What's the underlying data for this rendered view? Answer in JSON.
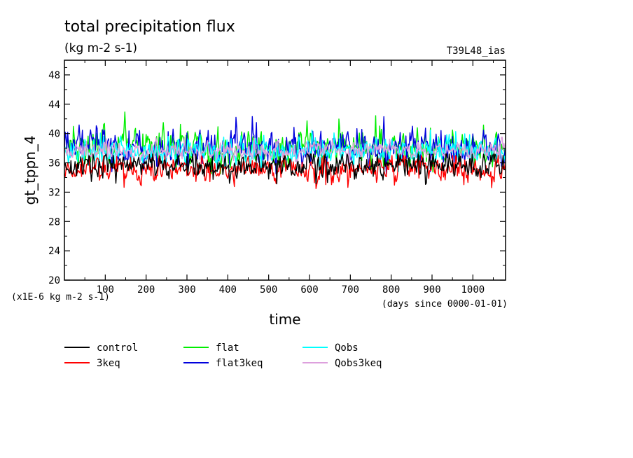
{
  "chart_data": {
    "type": "line",
    "title": "total precipitation flux",
    "subtitle": "(kg m-2 s-1)",
    "experiment_label": "T39L48_ias",
    "xlabel": "time",
    "x_unit_note": "(days since 0000-01-01)",
    "ylabel": "gt_tppn_4",
    "y_unit_note": "(x1E-6 kg m-2 s-1)",
    "xlim": [
      0,
      1080
    ],
    "ylim": [
      20,
      50
    ],
    "x_ticks": [
      100,
      200,
      300,
      400,
      500,
      600,
      700,
      800,
      900,
      1000
    ],
    "x_tick_labels": [
      "100",
      "200",
      "300",
      "400",
      "500",
      "600",
      "700",
      "800",
      "900",
      "1000"
    ],
    "y_ticks": [
      20,
      24,
      28,
      32,
      36,
      40,
      44,
      48
    ],
    "y_tick_labels": [
      "20",
      "24",
      "28",
      "32",
      "36",
      "40",
      "44",
      "48"
    ],
    "grid": false,
    "legend_position": "bottom",
    "series": [
      {
        "name": "control",
        "color": "#000000",
        "mean": 35.6,
        "amp": 1.4,
        "min": 32.1,
        "max": 37.2
      },
      {
        "name": "3keq",
        "color": "#ff0000",
        "mean": 35.2,
        "amp": 1.5,
        "min": 32.0,
        "max": 37.0
      },
      {
        "name": "flat",
        "color": "#00ee00",
        "mean": 38.2,
        "amp": 2.0,
        "min": 34.5,
        "max": 43.8
      },
      {
        "name": "flat3keq",
        "color": "#0000dd",
        "mean": 38.3,
        "amp": 2.1,
        "min": 34.5,
        "max": 43.6
      },
      {
        "name": "Qobs",
        "color": "#00ffff",
        "mean": 37.6,
        "amp": 1.6,
        "min": 34.8,
        "max": 41.5
      },
      {
        "name": "Qobs3keq",
        "color": "#dda0dd",
        "mean": 37.6,
        "amp": 1.0,
        "min": 35.5,
        "max": 39.5
      }
    ]
  }
}
